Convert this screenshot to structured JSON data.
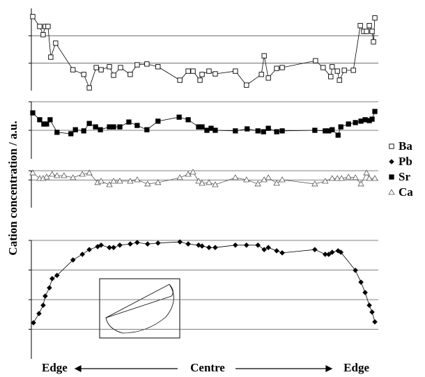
{
  "y_label": "Cation concentration / a.u.",
  "x_labels": [
    "Edge",
    "Centre",
    "Edge"
  ],
  "chart_data": [
    {
      "type": "line",
      "xlim": [
        0,
        100
      ],
      "ylim": [
        0,
        3
      ],
      "yticks": [
        1,
        2
      ],
      "grid": true,
      "x": [
        0.4,
        2.4,
        3.4,
        4.0,
        4.8,
        5.6,
        7.0,
        12.0,
        15.1,
        16.7,
        18.7,
        20.1,
        22.5,
        23.7,
        25.7,
        28.5,
        30.5,
        33.3,
        36.5,
        42.8,
        45.2,
        46.6,
        48.6,
        49.2,
        51.2,
        53.0,
        58.8,
        62.0,
        66.3,
        67.1,
        68.3,
        70.7,
        72.3,
        81.9,
        84.1,
        86.3,
        86.7,
        88.2,
        88.8,
        90.2,
        92.8,
        94.8,
        95.8,
        96.6,
        97.4,
        98.2,
        98.6,
        99.0
      ],
      "series": [
        {
          "name": "Ba",
          "color": "#000000",
          "marker": "open-square",
          "values": [
            2.7,
            2.34,
            2.04,
            2.34,
            2.34,
            1.22,
            1.73,
            0.76,
            0.59,
            0.1,
            0.84,
            0.76,
            0.87,
            0.56,
            0.84,
            0.59,
            0.94,
            0.97,
            0.87,
            0.38,
            0.71,
            0.71,
            0.38,
            0.59,
            0.71,
            0.61,
            0.71,
            0.2,
            0.59,
            1.27,
            0.46,
            0.81,
            0.84,
            1.09,
            0.84,
            0.51,
            0.87,
            0.71,
            0.38,
            0.74,
            0.74,
            2.37,
            2.16,
            2.16,
            2.37,
            2.16,
            1.78,
            2.65
          ]
        }
      ]
    },
    {
      "type": "line",
      "xlim": [
        0,
        100
      ],
      "ylim": [
        0,
        2
      ],
      "yticks": [
        1,
        2
      ],
      "grid": true,
      "x": [
        0.4,
        2.4,
        3.6,
        4.4,
        5.4,
        7.4,
        11.4,
        12.7,
        15.1,
        16.7,
        18.5,
        19.9,
        22.5,
        23.7,
        25.5,
        28.1,
        30.5,
        33.3,
        36.5,
        42.6,
        45.2,
        48.2,
        49.2,
        50.6,
        51.8,
        53.0,
        58.8,
        62.2,
        65.3,
        66.9,
        68.3,
        70.7,
        72.3,
        81.7,
        84.7,
        85.7,
        86.7,
        88.4,
        89.2,
        91.4,
        93.4,
        95.0,
        96.2,
        97.4,
        98.2,
        99.0
      ],
      "series": [
        {
          "name": "Sr",
          "color": "#000000",
          "marker": "filled-square",
          "values": [
            1.61,
            1.37,
            1.22,
            1.22,
            1.37,
            0.93,
            0.88,
            1.02,
            0.98,
            1.24,
            1.12,
            1.02,
            1.12,
            1.12,
            1.12,
            1.29,
            1.17,
            1.02,
            1.32,
            1.46,
            1.37,
            1.12,
            1.12,
            1.0,
            1.07,
            1.0,
            0.98,
            1.05,
            0.98,
            0.95,
            1.07,
            0.95,
            0.98,
            1.0,
            0.98,
            0.98,
            1.02,
            0.83,
            1.12,
            1.22,
            1.27,
            1.32,
            1.37,
            1.34,
            1.39,
            1.66
          ]
        }
      ]
    },
    {
      "type": "line",
      "xlim": [
        0,
        100
      ],
      "ylim": [
        0,
        4
      ],
      "yticks": [
        3,
        4
      ],
      "grid": true,
      "x": [
        0.4,
        2.4,
        3.4,
        4.4,
        6.0,
        7.4,
        9.4,
        12.0,
        14.7,
        16.7,
        19.1,
        20.1,
        22.5,
        23.7,
        25.5,
        28.5,
        30.5,
        33.5,
        36.5,
        42.8,
        45.2,
        46.6,
        48.2,
        49.2,
        51.2,
        53.0,
        58.8,
        62.0,
        65.3,
        67.1,
        68.3,
        70.7,
        72.3,
        81.7,
        84.7,
        86.7,
        88.2,
        89.4,
        91.4,
        93.4,
        95.0,
        96.6,
        97.4,
        99.0
      ],
      "series": [
        {
          "name": "Ca",
          "color": "#555555",
          "marker": "open-triangle",
          "values": [
            3.77,
            3.17,
            3.17,
            3.32,
            3.62,
            3.47,
            3.47,
            3.25,
            3.62,
            3.77,
            2.72,
            2.87,
            2.49,
            2.87,
            2.87,
            2.87,
            3.02,
            2.57,
            2.72,
            3.25,
            3.62,
            3.85,
            2.87,
            2.64,
            2.72,
            2.49,
            3.25,
            3.02,
            2.57,
            3.02,
            3.25,
            2.64,
            3.02,
            2.57,
            2.87,
            3.17,
            3.17,
            3.17,
            3.32,
            3.25,
            2.57,
            3.77,
            3.17,
            3.17
          ]
        }
      ]
    },
    {
      "type": "line",
      "xlim": [
        0,
        100
      ],
      "ylim": [
        0,
        4
      ],
      "yticks": [
        1,
        2,
        3,
        4
      ],
      "grid": true,
      "x": [
        0.6,
        2.2,
        3.4,
        4.0,
        5.2,
        6.0,
        7.4,
        12.0,
        14.7,
        16.7,
        19.1,
        20.1,
        22.5,
        23.7,
        25.5,
        28.5,
        30.5,
        33.5,
        36.5,
        42.8,
        45.2,
        48.2,
        49.2,
        51.2,
        53.0,
        58.8,
        62.0,
        65.3,
        67.1,
        68.3,
        70.7,
        72.3,
        81.7,
        84.7,
        85.7,
        86.7,
        88.4,
        89.2,
        93.4,
        95.0,
        96.2,
        97.4,
        98.2,
        99.0
      ],
      "series": [
        {
          "name": "Pb",
          "color": "#000000",
          "marker": "filled-diamond",
          "values": [
            1.22,
            1.53,
            1.81,
            2.12,
            2.4,
            2.71,
            2.82,
            3.34,
            3.53,
            3.69,
            3.79,
            3.84,
            3.76,
            3.76,
            3.84,
            3.88,
            3.93,
            3.88,
            3.91,
            3.95,
            3.88,
            3.84,
            3.81,
            3.76,
            3.76,
            3.84,
            3.84,
            3.84,
            3.69,
            3.76,
            3.65,
            3.58,
            3.69,
            3.53,
            3.53,
            3.6,
            3.65,
            3.6,
            2.99,
            2.59,
            2.24,
            1.81,
            1.58,
            1.25
          ]
        }
      ]
    }
  ]
}
